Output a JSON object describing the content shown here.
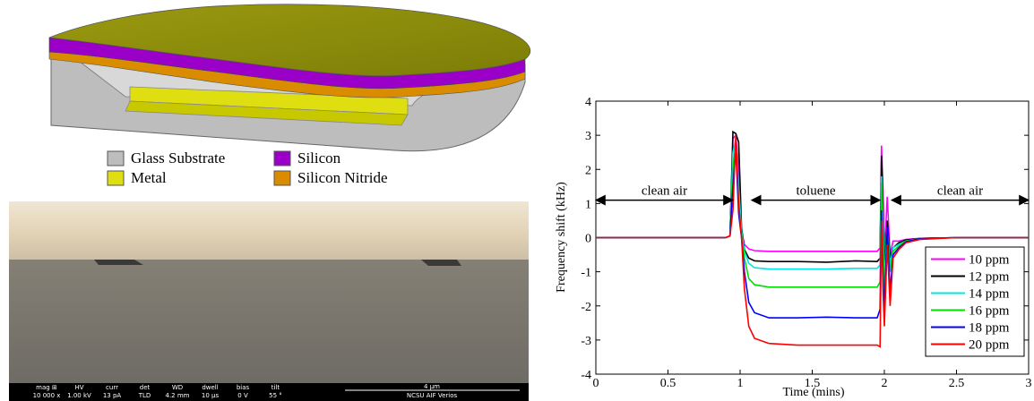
{
  "diagram": {
    "legend": [
      "Glass Substrate",
      "Silicon",
      "Metal",
      "Silicon Nitride"
    ]
  },
  "sem": {
    "info": [
      {
        "label": "mag ⊞",
        "value": "10 000 x"
      },
      {
        "label": "HV",
        "value": "1.00 kV"
      },
      {
        "label": "curr",
        "value": "13 pA"
      },
      {
        "label": "det",
        "value": "TLD"
      },
      {
        "label": "WD",
        "value": "4.2 mm"
      },
      {
        "label": "dwell",
        "value": "10 µs"
      },
      {
        "label": "bias",
        "value": "0 V"
      },
      {
        "label": "tilt",
        "value": "55 °"
      }
    ],
    "scale": "4 µm",
    "facility": "NCSU AIF Verios"
  },
  "chart_data": {
    "type": "line",
    "x_label": "Time (mins)",
    "y_label": "Frequency shift (kHz)",
    "xlim": [
      0,
      3
    ],
    "ylim": [
      -4,
      4
    ],
    "xticks": [
      0,
      0.5,
      1,
      1.5,
      2,
      2.5,
      3
    ],
    "yticks": [
      -4,
      -3,
      -2,
      -1,
      0,
      1,
      2,
      3,
      4
    ],
    "legend_position": "lower right",
    "x": [
      0,
      0.5,
      0.9,
      0.93,
      0.95,
      0.97,
      0.99,
      1.01,
      1.03,
      1.06,
      1.1,
      1.2,
      1.4,
      1.6,
      1.8,
      1.95,
      1.97,
      1.98,
      1.99,
      2.0,
      2.02,
      2.04,
      2.06,
      2.1,
      2.15,
      2.25,
      2.5,
      3.0
    ],
    "series": [
      {
        "name": "10 ppm",
        "color": "#ff00ff",
        "values": [
          0,
          0,
          0,
          0.05,
          2.9,
          3.0,
          2.0,
          0.2,
          -0.2,
          -0.33,
          -0.38,
          -0.4,
          -0.4,
          -0.4,
          -0.4,
          -0.4,
          -0.3,
          2.7,
          1.5,
          -0.5,
          1.2,
          -0.5,
          -0.1,
          -0.1,
          -0.05,
          -0.02,
          0,
          0
        ]
      },
      {
        "name": "12 ppm",
        "color": "#000000",
        "values": [
          0,
          0,
          0,
          0.05,
          3.1,
          3.05,
          2.8,
          0.3,
          -0.35,
          -0.6,
          -0.68,
          -0.7,
          -0.7,
          -0.72,
          -0.68,
          -0.7,
          -0.6,
          2.4,
          1.0,
          -1.0,
          0.5,
          -0.6,
          -0.3,
          -0.15,
          -0.07,
          -0.02,
          0,
          0
        ]
      },
      {
        "name": "14 ppm",
        "color": "#00e5e5",
        "values": [
          0,
          0,
          0,
          0.05,
          2.5,
          2.9,
          1.5,
          0.2,
          -0.4,
          -0.75,
          -0.88,
          -0.92,
          -0.92,
          -0.92,
          -0.9,
          -0.9,
          -0.8,
          1.8,
          0.5,
          -1.3,
          0.3,
          -0.8,
          -0.3,
          -0.2,
          -0.1,
          -0.03,
          0,
          0
        ]
      },
      {
        "name": "16 ppm",
        "color": "#00dd00",
        "values": [
          0,
          0,
          0,
          0.05,
          2.0,
          2.8,
          1.0,
          0.1,
          -0.6,
          -1.2,
          -1.38,
          -1.45,
          -1.45,
          -1.45,
          -1.45,
          -1.45,
          -1.3,
          1.6,
          0.0,
          -1.7,
          0.2,
          -1.0,
          -0.4,
          -0.25,
          -0.1,
          -0.03,
          0,
          0
        ]
      },
      {
        "name": "18 ppm",
        "color": "#0000ff",
        "values": [
          0,
          0,
          0,
          0.05,
          1.5,
          2.6,
          0.7,
          0.0,
          -1.0,
          -1.9,
          -2.2,
          -2.35,
          -2.35,
          -2.33,
          -2.35,
          -2.35,
          -2.1,
          0.8,
          -1.0,
          -2.2,
          0.3,
          -1.6,
          -0.5,
          -0.3,
          -0.12,
          -0.03,
          0,
          0
        ]
      },
      {
        "name": "20 ppm",
        "color": "#ff0000",
        "values": [
          0,
          0,
          0,
          0.05,
          0.8,
          3.0,
          1.0,
          0.0,
          -1.5,
          -2.6,
          -2.95,
          -3.1,
          -3.15,
          -3.15,
          -3.15,
          -3.15,
          -3.2,
          0.5,
          -1.5,
          -2.6,
          -0.2,
          -2.0,
          -0.6,
          -0.35,
          -0.15,
          -0.05,
          0,
          0
        ]
      }
    ],
    "annotations": [
      {
        "text": "clean air",
        "x": [
          0,
          0.95
        ],
        "y": 1.1
      },
      {
        "text": "toluene",
        "x": [
          1.08,
          1.97
        ],
        "y": 1.1
      },
      {
        "text": "clean air",
        "x": [
          2.05,
          3
        ],
        "y": 1.1
      }
    ]
  }
}
